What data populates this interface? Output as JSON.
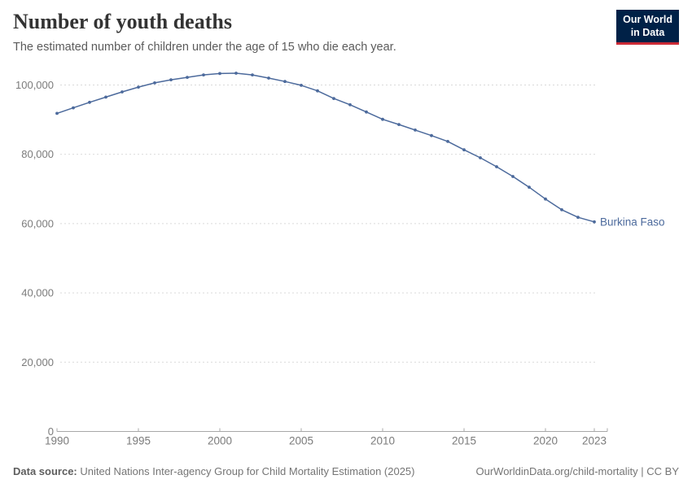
{
  "header": {
    "title": "Number of youth deaths",
    "subtitle": "The estimated number of children under the age of 15 who die each year."
  },
  "logo": {
    "line1": "Our World",
    "line2": "in Data",
    "bg_color": "#002147",
    "accent_color": "#cc2a36"
  },
  "chart_data": {
    "type": "line",
    "title": "Number of youth deaths",
    "x": [
      1990,
      1991,
      1992,
      1993,
      1994,
      1995,
      1996,
      1997,
      1998,
      1999,
      2000,
      2001,
      2002,
      2003,
      2004,
      2005,
      2006,
      2007,
      2008,
      2009,
      2010,
      2011,
      2012,
      2013,
      2014,
      2015,
      2016,
      2017,
      2018,
      2019,
      2020,
      2021,
      2022,
      2023
    ],
    "series": [
      {
        "name": "Burkina Faso",
        "color": "#4c6a9c",
        "values": [
          91800,
          93400,
          95000,
          96500,
          98000,
          99400,
          100600,
          101500,
          102200,
          102900,
          103300,
          103400,
          102900,
          102000,
          101000,
          99900,
          98300,
          96100,
          94300,
          92200,
          90100,
          88600,
          87000,
          85400,
          83700,
          81300,
          79000,
          76400,
          73600,
          70500,
          67100,
          64000,
          61800,
          60500
        ]
      }
    ],
    "xlabel": "",
    "ylabel": "",
    "xlim": [
      1990,
      2023
    ],
    "ylim": [
      0,
      105000
    ],
    "xticks": [
      1990,
      1995,
      2000,
      2005,
      2010,
      2015,
      2020,
      2023
    ],
    "xtick_labels": [
      "1990",
      "1995",
      "2000",
      "2005",
      "2010",
      "2015",
      "2020",
      "2023"
    ],
    "yticks": [
      0,
      20000,
      40000,
      60000,
      80000,
      100000
    ],
    "ytick_labels": [
      "0",
      "20,000",
      "40,000",
      "60,000",
      "80,000",
      "100,000"
    ],
    "grid": "horizontal-dashed",
    "legend_position": "end-of-line",
    "end_label": "Burkina Faso"
  },
  "footer": {
    "source_label": "Data source:",
    "source_text": " United Nations Inter-agency Group for Child Mortality Estimation (2025)",
    "link_text": "OurWorldinData.org/child-mortality | CC BY"
  }
}
